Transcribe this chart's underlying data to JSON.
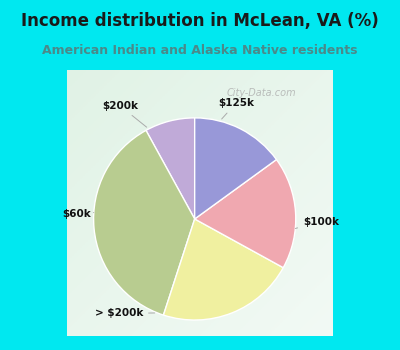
{
  "title": "Income distribution in McLean, VA (%)",
  "subtitle": "American Indian and Alaska Native residents",
  "title_color": "#1a1a1a",
  "subtitle_color": "#4a8a8a",
  "border_color": "#00e8f0",
  "border_width": 8,
  "background_chart": "#d8ede0",
  "labels": [
    "$125k",
    "$100k",
    "> $200k",
    "$60k",
    "$200k"
  ],
  "values": [
    8,
    37,
    22,
    18,
    15
  ],
  "colors": [
    "#c0aad8",
    "#b8cc90",
    "#f0f0a0",
    "#f0a8b0",
    "#9898d8"
  ],
  "startangle": 90,
  "watermark": "City-Data.com"
}
